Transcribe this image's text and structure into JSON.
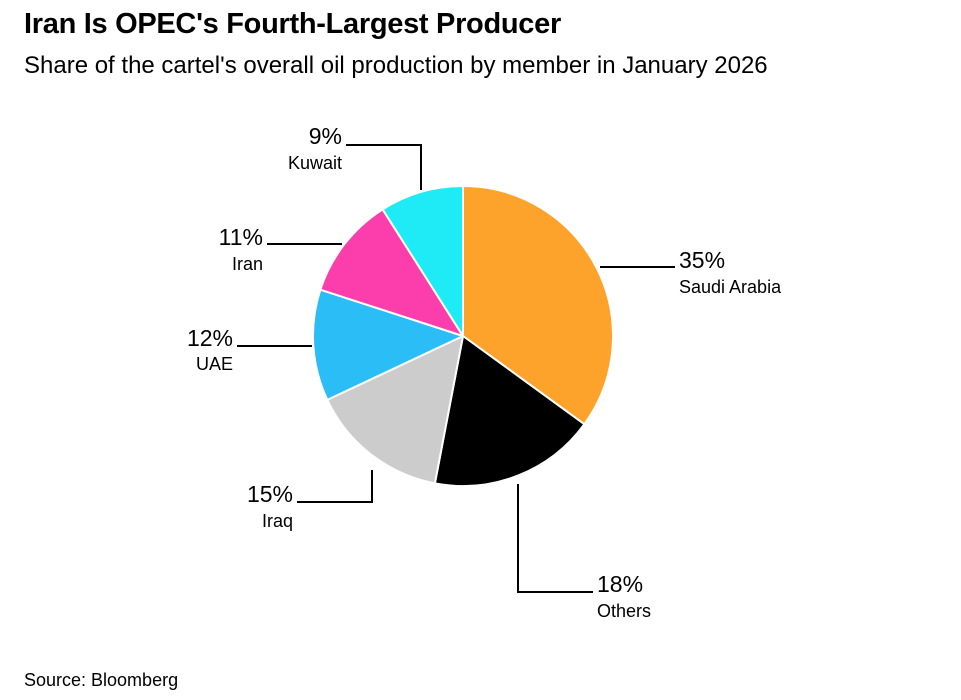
{
  "header": {
    "title": "Iran Is OPEC's Fourth-Largest Producer",
    "subtitle": "Share of the cartel's overall oil production by member in January 2026"
  },
  "footer": {
    "source": "Source: Bloomberg"
  },
  "chart_data": {
    "type": "pie",
    "title": "Iran Is OPEC's Fourth-Largest Producer",
    "subtitle": "Share of the cartel's overall oil production by member in January 2026",
    "unit": "%",
    "slices": [
      {
        "name": "Saudi Arabia",
        "value": 35,
        "label": "35%",
        "color": "#fda22a"
      },
      {
        "name": "Others",
        "value": 18,
        "label": "18%",
        "color": "#000000"
      },
      {
        "name": "Iraq",
        "value": 15,
        "label": "15%",
        "color": "#cccccc"
      },
      {
        "name": "UAE",
        "value": 12,
        "label": "12%",
        "color": "#2abdf6"
      },
      {
        "name": "Iran",
        "value": 11,
        "label": "11%",
        "color": "#fb3eac"
      },
      {
        "name": "Kuwait",
        "value": 9,
        "label": "9%",
        "color": "#1eebf5"
      }
    ],
    "start": "12 o'clock",
    "direction": "clockwise"
  }
}
